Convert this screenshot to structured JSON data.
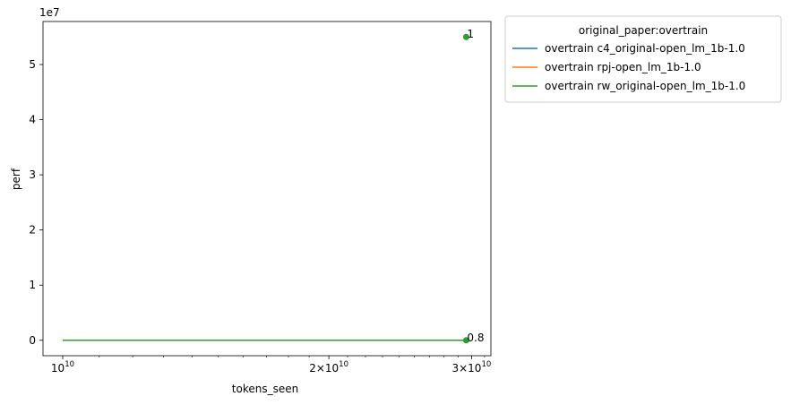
{
  "chart_data": {
    "type": "line",
    "title": "",
    "xlabel": "tokens_seen",
    "ylabel": "perf",
    "x_scale": "log",
    "xlim": [
      9500000000,
      30500000000
    ],
    "ylim": [
      -2800000,
      57800000
    ],
    "y_offset_label": "1e7",
    "x_ticks": [
      {
        "value": 10000000000,
        "base": "10",
        "exp": "10"
      },
      {
        "value": 20000000000,
        "base": "2×10",
        "exp": "10"
      },
      {
        "value": 29000000000,
        "base": "3×10",
        "exp": "10"
      }
    ],
    "y_ticks": [
      {
        "value": 0,
        "label": "0"
      },
      {
        "value": 10000000,
        "label": "1"
      },
      {
        "value": 20000000,
        "label": "2"
      },
      {
        "value": 30000000,
        "label": "3"
      },
      {
        "value": 40000000,
        "label": "4"
      },
      {
        "value": 50000000,
        "label": "5"
      }
    ],
    "grid": false,
    "legend": {
      "title": "original_paper:overtrain",
      "placement": "outside-top-right"
    },
    "series": [
      {
        "name": "overtrain c4_original-open_lm_1b-1.0",
        "color": "#1f77b4",
        "x": [
          10000000000,
          28600000000
        ],
        "y": [
          0,
          0
        ]
      },
      {
        "name": "overtrain rpj-open_lm_1b-1.0",
        "color": "#ff7f0e",
        "x": [
          10000000000,
          28600000000
        ],
        "y": [
          0,
          0
        ]
      },
      {
        "name": "overtrain rw_original-open_lm_1b-1.0",
        "color": "#2ca02c",
        "x": [
          10000000000,
          28600000000
        ],
        "y": [
          0,
          0
        ]
      }
    ],
    "points": [
      {
        "x": 28600000000,
        "y": 55000000,
        "color": "#2ca02c"
      },
      {
        "x": 28600000000,
        "y": 0,
        "color": "#2ca02c"
      }
    ],
    "annotations": [
      {
        "x": 28600000000,
        "y": 55000000,
        "text": "1"
      },
      {
        "x": 28600000000,
        "y": 0,
        "text": "0.8"
      }
    ]
  }
}
